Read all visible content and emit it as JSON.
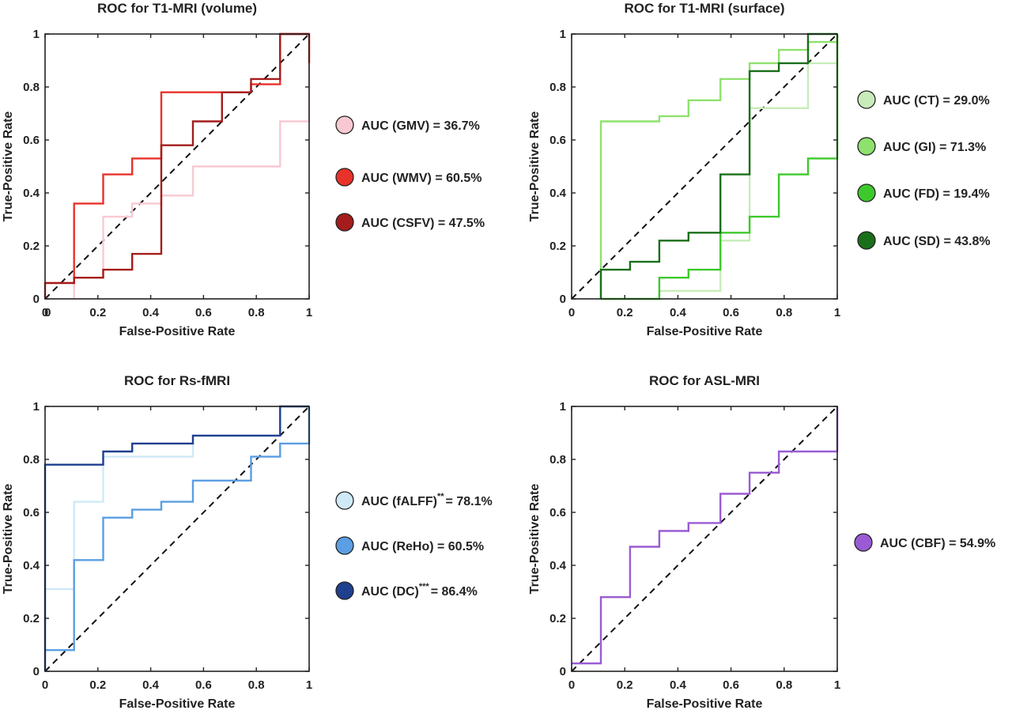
{
  "chart_data": [
    {
      "type": "line",
      "title": "ROC for T1-MRI (volume)",
      "xlabel": "False-Positive Rate",
      "ylabel": "True-Positive Rate",
      "xlim": [
        0,
        1
      ],
      "ylim": [
        0,
        1
      ],
      "xticks": [
        "0",
        "0.2",
        "0.4",
        "0.6",
        "0.8",
        "1"
      ],
      "yticks": [
        "0",
        "0.2",
        "0.4",
        "0.6",
        "0.8",
        "1"
      ],
      "extra_xtick": {
        "label": "0",
        "value": 0.01
      },
      "grid": false,
      "legend_position": "right",
      "series": [
        {
          "name": "AUC (GMV) = 36.7%",
          "color": "#f9c9d2",
          "x": [
            0.11,
            0.11,
            0.22,
            0.22,
            0.33,
            0.33,
            0.44,
            0.44,
            0.56,
            0.56,
            0.89,
            0.89,
            1,
            1
          ],
          "y": [
            0,
            0.08,
            0.08,
            0.31,
            0.31,
            0.36,
            0.36,
            0.39,
            0.39,
            0.5,
            0.5,
            0.67,
            0.67,
            1
          ]
        },
        {
          "name": "AUC (WMV) = 60.5%",
          "color": "#e8322a",
          "x": [
            0,
            0,
            0.11,
            0.11,
            0.22,
            0.22,
            0.33,
            0.33,
            0.44,
            0.44,
            0.78,
            0.78,
            0.89,
            0.89,
            1,
            1
          ],
          "y": [
            0,
            0.06,
            0.06,
            0.36,
            0.36,
            0.47,
            0.47,
            0.53,
            0.53,
            0.78,
            0.78,
            0.81,
            0.81,
            1,
            1,
            0.89
          ]
        },
        {
          "name": "AUC (CSFV) = 47.5%",
          "color": "#a51c1c",
          "x": [
            0,
            0.11,
            0.11,
            0.22,
            0.22,
            0.33,
            0.33,
            0.44,
            0.44,
            0.56,
            0.56,
            0.67,
            0.67,
            0.78,
            0.78,
            0.89,
            0.89,
            1
          ],
          "y": [
            0.06,
            0.06,
            0.08,
            0.08,
            0.11,
            0.11,
            0.17,
            0.17,
            0.58,
            0.58,
            0.67,
            0.67,
            0.78,
            0.78,
            0.83,
            0.83,
            1,
            1
          ]
        }
      ]
    },
    {
      "type": "line",
      "title": "ROC for T1-MRI (surface)",
      "xlabel": "False-Positive Rate",
      "ylabel": "True-Positive Rate",
      "xlim": [
        0,
        1
      ],
      "ylim": [
        0,
        1
      ],
      "xticks": [
        "0",
        "0.2",
        "0.4",
        "0.6",
        "0.8",
        "1"
      ],
      "yticks": [
        "0",
        "0.2",
        "0.4",
        "0.6",
        "0.8",
        "1"
      ],
      "grid": false,
      "legend_position": "right",
      "series": [
        {
          "name": "AUC (CT) = 29.0%",
          "color": "#c8ecb9",
          "x": [
            0.33,
            0.33,
            0.56,
            0.56,
            0.67,
            0.67,
            0.89,
            0.89,
            1,
            1
          ],
          "y": [
            0,
            0.03,
            0.03,
            0.22,
            0.22,
            0.72,
            0.72,
            0.89,
            0.89,
            1
          ]
        },
        {
          "name": "AUC (GI) = 71.3%",
          "color": "#8fe16d",
          "x": [
            0.11,
            0.11,
            0.33,
            0.33,
            0.44,
            0.44,
            0.56,
            0.56,
            0.67,
            0.67,
            0.78,
            0.78,
            0.89,
            0.89,
            1,
            1
          ],
          "y": [
            0,
            0.67,
            0.67,
            0.69,
            0.69,
            0.75,
            0.75,
            0.83,
            0.83,
            0.89,
            0.89,
            0.94,
            0.94,
            0.97,
            0.97,
            1
          ]
        },
        {
          "name": "AUC (FD) = 19.4%",
          "color": "#3dc92c",
          "x": [
            0.11,
            0.33,
            0.33,
            0.44,
            0.44,
            0.56,
            0.56,
            0.67,
            0.67,
            0.78,
            0.78,
            0.89,
            0.89,
            1,
            1
          ],
          "y": [
            0,
            0,
            0.08,
            0.08,
            0.11,
            0.11,
            0.25,
            0.25,
            0.31,
            0.31,
            0.47,
            0.47,
            0.53,
            0.53,
            1
          ]
        },
        {
          "name": "AUC (SD) = 43.8%",
          "color": "#1a6f1a",
          "x": [
            0.11,
            0.11,
            0.22,
            0.22,
            0.33,
            0.33,
            0.44,
            0.44,
            0.56,
            0.56,
            0.67,
            0.67,
            0.78,
            0.78,
            0.89,
            0.89,
            1
          ],
          "y": [
            0,
            0.11,
            0.11,
            0.14,
            0.14,
            0.22,
            0.22,
            0.25,
            0.25,
            0.47,
            0.47,
            0.86,
            0.86,
            0.89,
            0.89,
            1,
            1
          ]
        }
      ]
    },
    {
      "type": "line",
      "title": "ROC for Rs-fMRI",
      "xlabel": "False-Positive Rate",
      "ylabel": "True-Positive Rate",
      "xlim": [
        0,
        1
      ],
      "ylim": [
        0,
        1
      ],
      "xticks": [
        "0",
        "0.2",
        "0.4",
        "0.6",
        "0.8",
        "1"
      ],
      "yticks": [
        "0",
        "0.2",
        "0.4",
        "0.6",
        "0.8",
        "1"
      ],
      "grid": false,
      "legend_position": "right",
      "series": [
        {
          "name": "AUC (fALFF)",
          "suffix": "= 78.1%",
          "superscript": "**",
          "color": "#cfe9f7",
          "x": [
            0,
            0.11,
            0.11,
            0.22,
            0.22,
            0.56,
            0.56,
            0.89,
            0.89,
            1
          ],
          "y": [
            0.31,
            0.31,
            0.64,
            0.64,
            0.81,
            0.81,
            0.89,
            0.89,
            1,
            1
          ]
        },
        {
          "name": "AUC (ReHo) = 60.5%",
          "color": "#5b9ee3",
          "x": [
            0,
            0.11,
            0.11,
            0.22,
            0.22,
            0.33,
            0.33,
            0.44,
            0.44,
            0.56,
            0.56,
            0.78,
            0.78,
            0.89,
            0.89,
            1,
            1
          ],
          "y": [
            0.08,
            0.08,
            0.42,
            0.42,
            0.58,
            0.58,
            0.61,
            0.61,
            0.64,
            0.64,
            0.72,
            0.72,
            0.81,
            0.81,
            0.86,
            0.86,
            1
          ]
        },
        {
          "name": "AUC (DC)",
          "suffix": "= 86.4%",
          "superscript": "***",
          "color": "#1f3f8f",
          "x": [
            0,
            0,
            0.22,
            0.22,
            0.33,
            0.33,
            0.56,
            0.56,
            0.89,
            0.89,
            1
          ],
          "y": [
            0,
            0.78,
            0.78,
            0.83,
            0.83,
            0.86,
            0.86,
            0.89,
            0.89,
            1,
            1
          ]
        }
      ]
    },
    {
      "type": "line",
      "title": "ROC for ASL-MRI",
      "xlabel": "False-Positive Rate",
      "ylabel": "True-Positive Rate",
      "xlim": [
        0,
        1
      ],
      "ylim": [
        0,
        1
      ],
      "xticks": [
        "0",
        "0.2",
        "0.4",
        "0.6",
        "0.8",
        "1"
      ],
      "yticks": [
        "0",
        "0.2",
        "0.4",
        "0.6",
        "0.8",
        "1"
      ],
      "grid": false,
      "legend_position": "right",
      "series": [
        {
          "name": "AUC (CBF) = 54.9%",
          "color": "#9a5bd4",
          "x": [
            0,
            0.11,
            0.11,
            0.22,
            0.22,
            0.33,
            0.33,
            0.44,
            0.44,
            0.56,
            0.56,
            0.67,
            0.67,
            0.78,
            0.78,
            1,
            1
          ],
          "y": [
            0.03,
            0.03,
            0.28,
            0.28,
            0.47,
            0.47,
            0.53,
            0.53,
            0.56,
            0.56,
            0.67,
            0.67,
            0.75,
            0.75,
            0.83,
            0.83,
            1
          ]
        }
      ]
    }
  ]
}
